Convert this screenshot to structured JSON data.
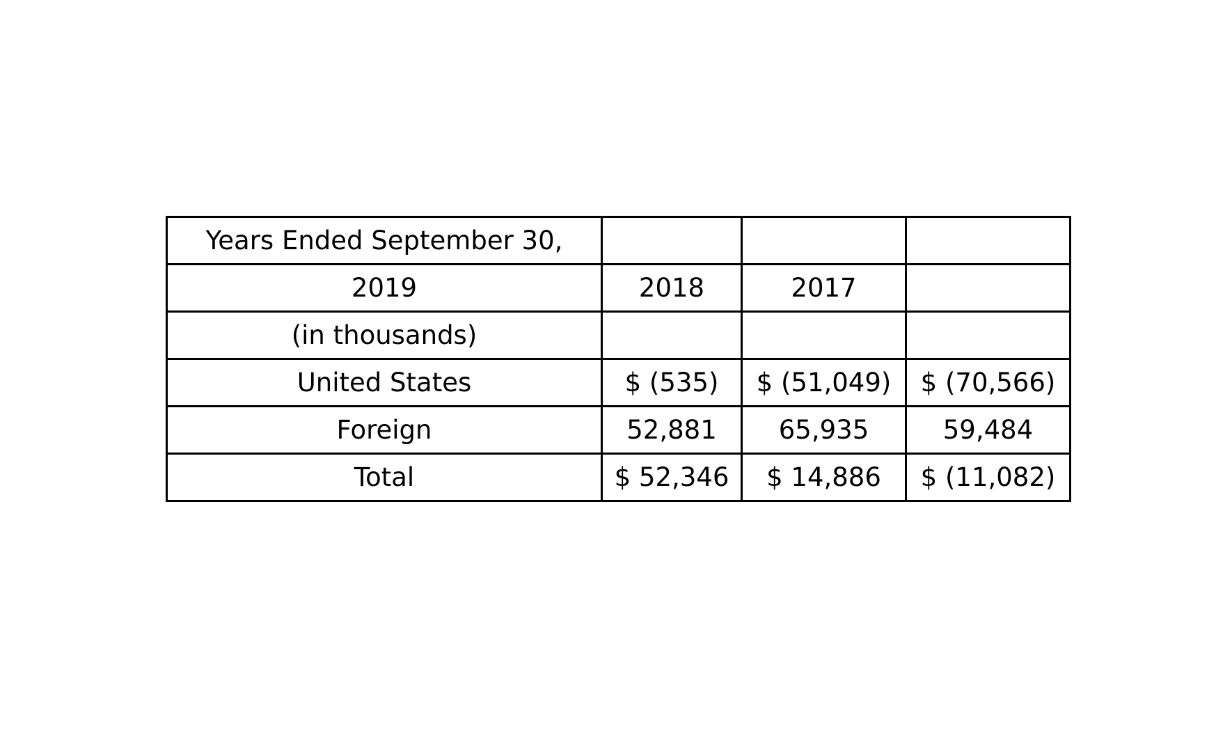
{
  "table": {
    "rows": [
      [
        "Years Ended September 30,",
        "",
        "",
        ""
      ],
      [
        "2019",
        "2018",
        "2017",
        ""
      ],
      [
        "(in thousands)",
        "",
        "",
        ""
      ],
      [
        "United States",
        "$ (535)",
        "$ (51,049)",
        "$ (70,566)"
      ],
      [
        "Foreign",
        "52,881",
        "65,935",
        "59,484"
      ],
      [
        "Total",
        "$ 52,346",
        "$ 14,886",
        "$ (11,082)"
      ]
    ]
  }
}
